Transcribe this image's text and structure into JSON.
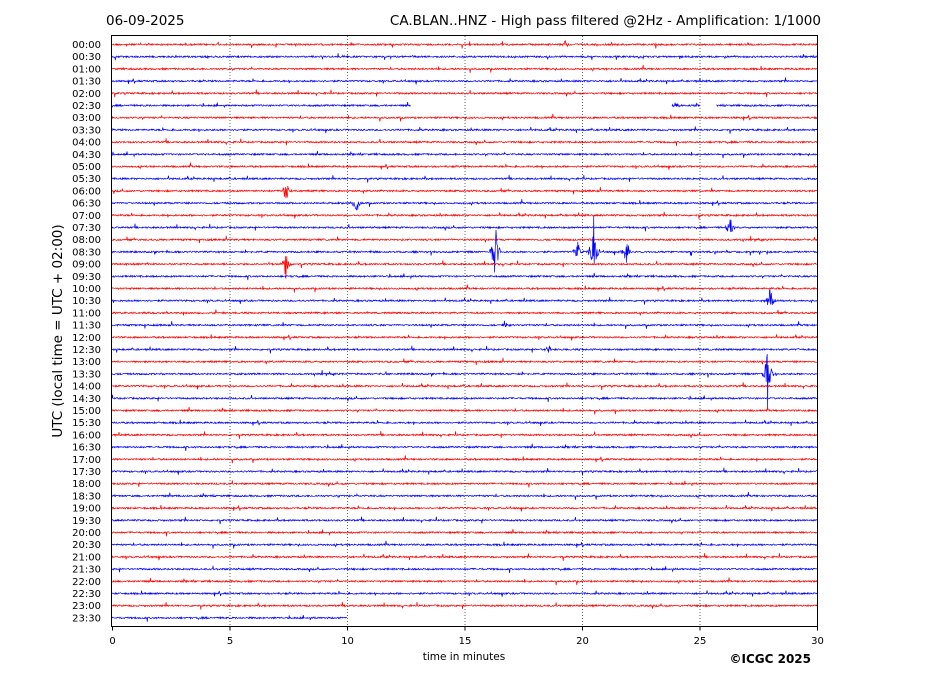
{
  "header": {
    "date": "06-09-2025",
    "title": "CA.BLAN..HNZ - High pass filtered @2Hz - Amplification: 1/1000"
  },
  "copyright": "©ICGC 2025",
  "colors": {
    "red": "#ff0000",
    "blue": "#0000ff",
    "grid": "#000000"
  },
  "chart_data": {
    "type": "line",
    "title": "CA.BLAN..HNZ - High pass filtered @2Hz - Amplification: 1/1000",
    "xlabel": "time in minutes",
    "ylabel": "UTC (local time = UTC + 02:00)",
    "xlim": [
      0,
      30
    ],
    "x_ticks": [
      0,
      5,
      10,
      15,
      20,
      25,
      30
    ],
    "x_gridlines": [
      5,
      10,
      15,
      20,
      25
    ],
    "trace_labels": [
      "00:00",
      "00:30",
      "01:00",
      "01:30",
      "02:00",
      "02:30",
      "03:00",
      "03:30",
      "04:00",
      "04:30",
      "05:00",
      "05:30",
      "06:00",
      "06:30",
      "07:00",
      "07:30",
      "08:00",
      "08:30",
      "09:00",
      "09:30",
      "10:00",
      "10:30",
      "11:00",
      "11:30",
      "12:00",
      "12:30",
      "13:00",
      "13:30",
      "14:00",
      "14:30",
      "15:00",
      "15:30",
      "16:00",
      "16:30",
      "17:00",
      "17:30",
      "18:00",
      "18:30",
      "19:00",
      "19:30",
      "20:00",
      "20:30",
      "21:00",
      "21:30",
      "22:00",
      "22:30",
      "23:00",
      "23:30"
    ],
    "trace_colors": [
      "red",
      "blue",
      "red",
      "blue",
      "red",
      "blue",
      "red",
      "blue",
      "red",
      "blue",
      "red",
      "blue",
      "red",
      "blue",
      "red",
      "blue",
      "red",
      "blue",
      "red",
      "blue",
      "red",
      "blue",
      "red",
      "blue",
      "red",
      "blue",
      "red",
      "blue",
      "red",
      "blue",
      "red",
      "blue",
      "red",
      "blue",
      "red",
      "blue",
      "red",
      "blue",
      "red",
      "blue",
      "red",
      "blue",
      "red",
      "blue",
      "red",
      "blue",
      "red",
      "blue"
    ],
    "data_gaps": [
      {
        "trace": "02:30",
        "from_minute": 12.7,
        "to_minute": 23.8
      },
      {
        "trace": "02:30",
        "from_minute": 25.0,
        "to_minute": 25.7
      }
    ],
    "trace_end_minute": {
      "23:30": 10.0
    },
    "events": [
      {
        "trace": "13:30",
        "minute": 27.9,
        "amplitude": "large"
      },
      {
        "trace": "08:30",
        "minute": 20.5,
        "amplitude": "large"
      },
      {
        "trace": "08:30",
        "minute": 16.3,
        "amplitude": "large"
      },
      {
        "trace": "08:30",
        "minute": 21.9,
        "amplitude": "medium"
      },
      {
        "trace": "08:30",
        "minute": 19.8,
        "amplitude": "medium"
      },
      {
        "trace": "09:00",
        "minute": 7.4,
        "amplitude": "medium"
      },
      {
        "trace": "06:00",
        "minute": 7.4,
        "amplitude": "medium"
      },
      {
        "trace": "06:30",
        "minute": 10.4,
        "amplitude": "medium"
      },
      {
        "trace": "07:30",
        "minute": 26.3,
        "amplitude": "medium"
      },
      {
        "trace": "10:30",
        "minute": 28.0,
        "amplitude": "medium"
      },
      {
        "trace": "11:30",
        "minute": 16.7,
        "amplitude": "small"
      },
      {
        "trace": "12:30",
        "minute": 18.6,
        "amplitude": "small"
      },
      {
        "trace": "00:00",
        "minute": 19.3,
        "amplitude": "small"
      },
      {
        "trace": "02:30",
        "minute": 24.0,
        "amplitude": "small"
      }
    ]
  }
}
